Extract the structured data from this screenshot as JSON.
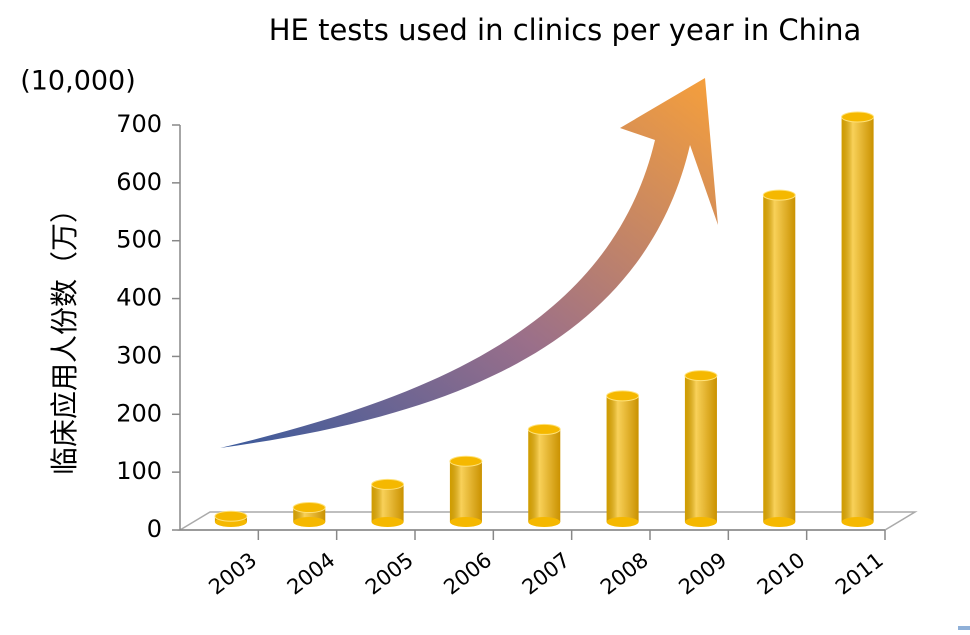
{
  "chart_data": {
    "type": "bar",
    "title": "HE tests used in clinics per year in China",
    "unit_label": "(10,000)",
    "y_label": "临床应用人份数（万）",
    "categories": [
      "2003",
      "2004",
      "2005",
      "2006",
      "2007",
      "2008",
      "2009",
      "2010",
      "2011"
    ],
    "values": [
      10,
      25,
      65,
      105,
      160,
      218,
      253,
      565,
      700
    ],
    "color": "#f5b800",
    "ylim": [
      0,
      700
    ],
    "yticks": [
      0,
      100,
      200,
      300,
      400,
      500,
      600,
      700
    ]
  }
}
